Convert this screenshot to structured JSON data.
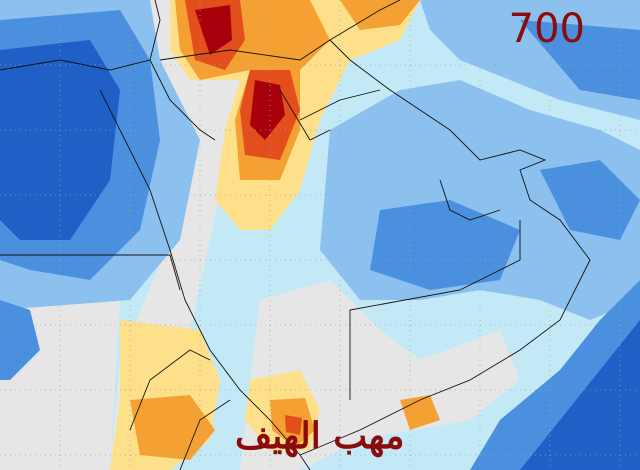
{
  "map": {
    "level_label": "700",
    "watermark": "مهب الهيف"
  }
}
